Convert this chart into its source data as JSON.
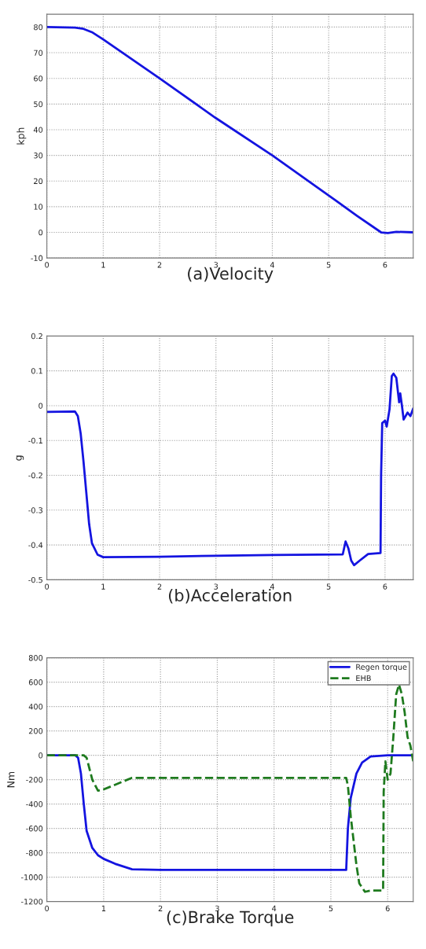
{
  "chart_data": [
    {
      "type": "line",
      "title": "(a)Velocity",
      "ylabel": "kph",
      "xlim": [
        0,
        6.5
      ],
      "ylim": [
        -10,
        85
      ],
      "xticks": [
        0,
        1,
        2,
        3,
        4,
        5,
        6
      ],
      "yticks": [
        -10,
        0,
        10,
        20,
        30,
        40,
        50,
        60,
        70,
        80
      ],
      "grid": true,
      "legend": false,
      "series": [
        {
          "color": "#1414e0",
          "line_style": "solid",
          "x": [
            0,
            0.5,
            0.65,
            0.8,
            1,
            2,
            3,
            4,
            5,
            5.5,
            5.93,
            6.05,
            6.2,
            6.5
          ],
          "values": [
            80,
            79.8,
            79.3,
            78,
            75.2,
            60,
            44.5,
            30,
            14.4,
            6.5,
            0,
            -0.3,
            0.2,
            0
          ]
        }
      ]
    },
    {
      "type": "line",
      "title": "(b)Acceleration",
      "ylabel": "g",
      "xlim": [
        0,
        6.5
      ],
      "ylim": [
        -0.5,
        0.2
      ],
      "xticks": [
        0,
        1,
        2,
        3,
        4,
        5,
        6
      ],
      "yticks": [
        -0.5,
        -0.4,
        -0.3,
        -0.2,
        -0.1,
        0,
        0.1,
        0.2
      ],
      "grid": true,
      "legend": false,
      "series": [
        {
          "color": "#1414e0",
          "line_style": "solid",
          "x": [
            0,
            0.5,
            0.55,
            0.6,
            0.65,
            0.7,
            0.75,
            0.8,
            0.9,
            1.0,
            2,
            3,
            4,
            5.25,
            5.3,
            5.35,
            5.4,
            5.45,
            5.55,
            5.7,
            5.92,
            5.93,
            5.95,
            6.0,
            6.03,
            6.08,
            6.12,
            6.15,
            6.2,
            6.25,
            6.27,
            6.3,
            6.33,
            6.4,
            6.45,
            6.5
          ],
          "values": [
            -0.018,
            -0.017,
            -0.03,
            -0.08,
            -0.16,
            -0.25,
            -0.34,
            -0.395,
            -0.428,
            -0.435,
            -0.434,
            -0.431,
            -0.429,
            -0.427,
            -0.39,
            -0.41,
            -0.445,
            -0.458,
            -0.445,
            -0.426,
            -0.423,
            -0.2,
            -0.05,
            -0.043,
            -0.06,
            -0.01,
            0.085,
            0.092,
            0.08,
            0.01,
            0.035,
            0.0,
            -0.04,
            -0.02,
            -0.03,
            -0.008
          ]
        }
      ]
    },
    {
      "type": "line",
      "title": "(c)Brake Torque",
      "ylabel": "Nm",
      "xlim": [
        0,
        6.45
      ],
      "ylim": [
        -1200,
        800
      ],
      "xticks": [
        0,
        1,
        2,
        3,
        4,
        5,
        6
      ],
      "yticks": [
        -1200,
        -1000,
        -800,
        -600,
        -400,
        -200,
        0,
        200,
        400,
        600,
        800
      ],
      "grid": true,
      "legend": "top right",
      "series": [
        {
          "name": "Regen torque",
          "color": "#1414e0",
          "line_style": "solid",
          "x": [
            0,
            0.5,
            0.55,
            0.6,
            0.65,
            0.7,
            0.8,
            0.9,
            1.0,
            1.2,
            1.5,
            2,
            5.27,
            5.3,
            5.35,
            5.45,
            5.55,
            5.7,
            6.0,
            6.45
          ],
          "values": [
            0,
            0,
            -20,
            -150,
            -400,
            -620,
            -760,
            -820,
            -850,
            -890,
            -935,
            -940,
            -940,
            -600,
            -350,
            -150,
            -60,
            -10,
            0,
            0
          ]
        },
        {
          "name": "EHB",
          "color": "#1e7a1e",
          "line_style": "dashed",
          "x": [
            0,
            0.65,
            0.7,
            0.8,
            0.9,
            1.0,
            1.5,
            5.27,
            5.3,
            5.35,
            5.45,
            5.5,
            5.6,
            5.7,
            5.92,
            5.93,
            5.96,
            6.0,
            6.05,
            6.1,
            6.15,
            6.2,
            6.25,
            6.3,
            6.35,
            6.4,
            6.45
          ],
          "values": [
            0,
            0,
            -20,
            -200,
            -290,
            -280,
            -185,
            -185,
            -250,
            -500,
            -900,
            -1050,
            -1120,
            -1110,
            -1110,
            -300,
            -50,
            -200,
            -150,
            150,
            500,
            580,
            500,
            350,
            150,
            80,
            -50
          ]
        }
      ]
    }
  ]
}
